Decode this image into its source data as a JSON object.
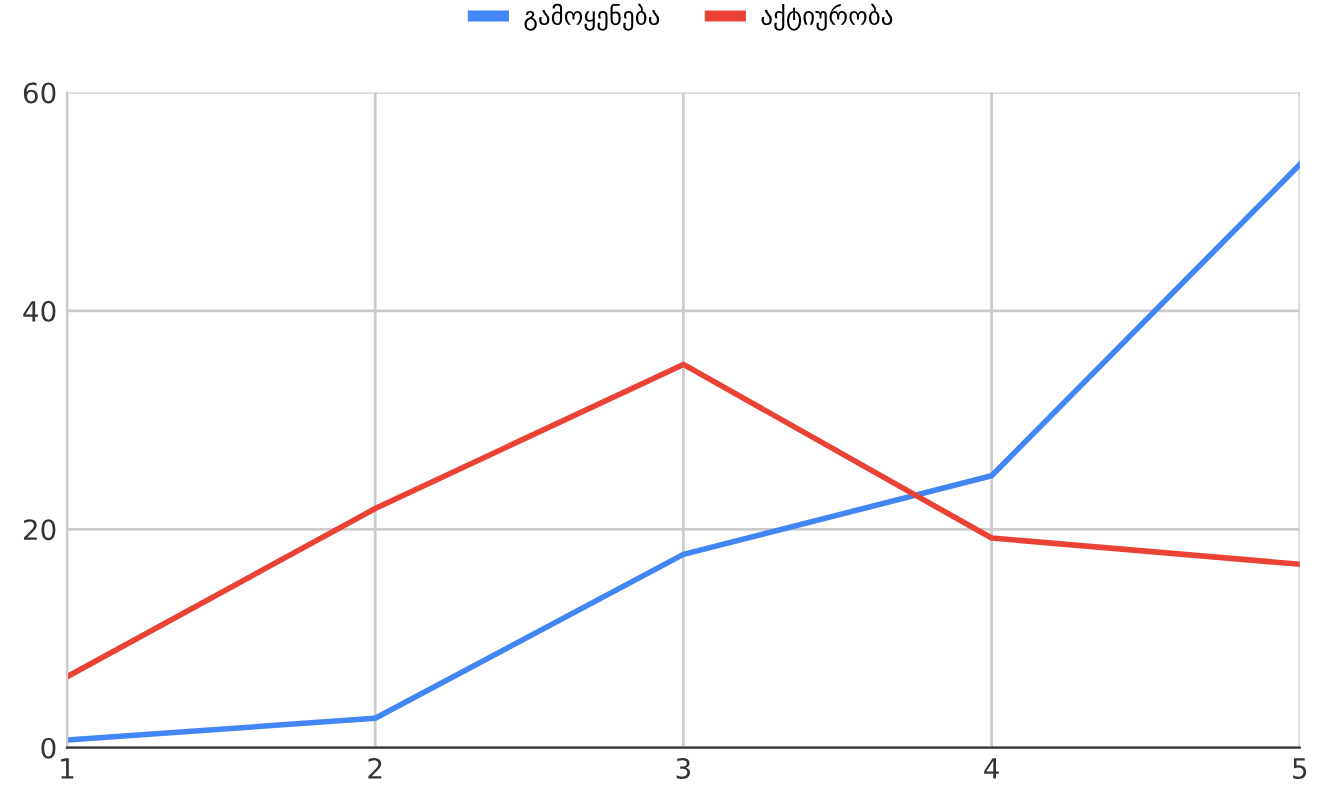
{
  "chart_data": {
    "type": "line",
    "x": [
      1,
      2,
      3,
      4,
      5
    ],
    "series": [
      {
        "name": "გამოყენება",
        "color": "#4285f4",
        "values": [
          0.7,
          2.7,
          17.7,
          24.9,
          53.4
        ]
      },
      {
        "name": "აქტიურობა",
        "color": "#ea4335",
        "values": [
          6.5,
          21.9,
          35.1,
          19.2,
          16.8
        ]
      }
    ],
    "xlim": [
      1,
      5
    ],
    "xticks": [
      1,
      2,
      3,
      4,
      5
    ],
    "ylim": [
      0,
      60
    ],
    "yticks": [
      0,
      20,
      40,
      60
    ],
    "grid": true,
    "legend": "top",
    "marker": "none",
    "line_style": "solid"
  }
}
